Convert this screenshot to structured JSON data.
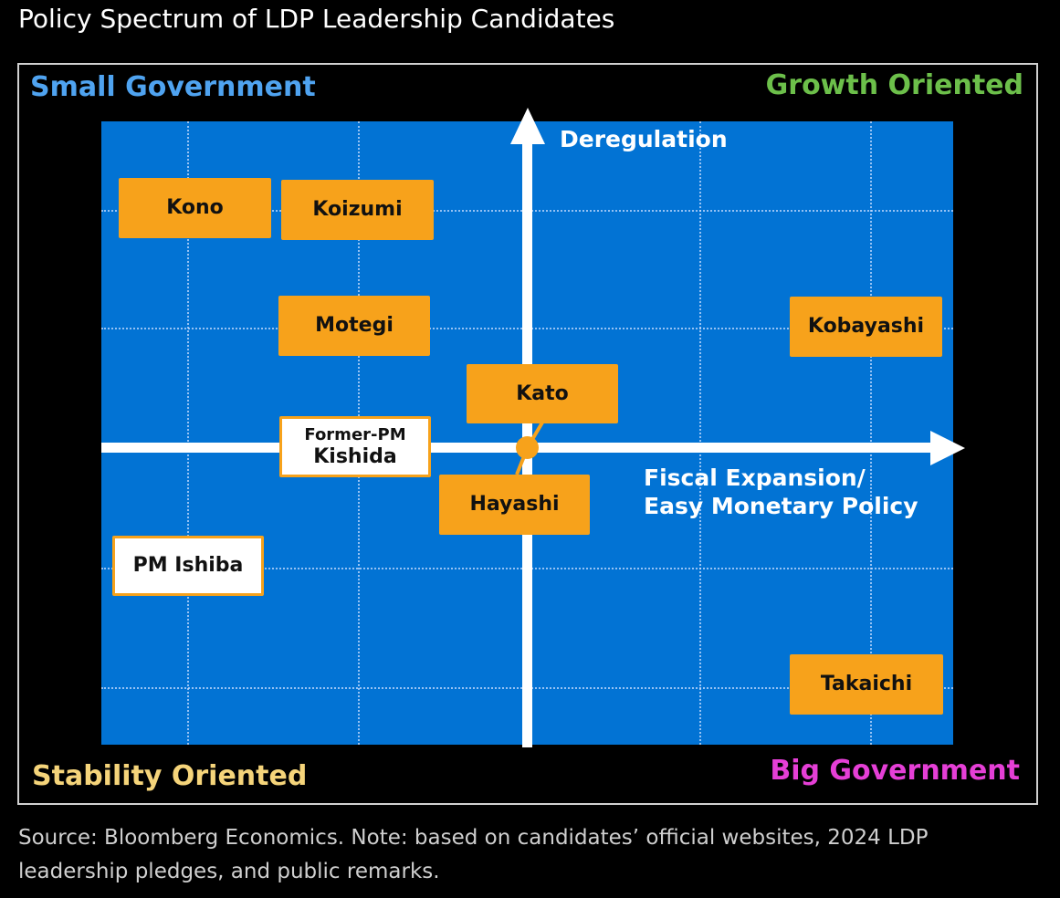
{
  "title": "Policy Spectrum of LDP Leadership Candidates",
  "quadrants": {
    "top_left": "Small Government",
    "top_right": "Growth Oriented",
    "bottom_left": "Stability Oriented",
    "bottom_right": "Big Government"
  },
  "axes": {
    "vertical_label": "Deregulation",
    "horizontal_label_line1": "Fiscal Expansion/",
    "horizontal_label_line2": "Easy Monetary Policy"
  },
  "candidates": {
    "kono": "Kono",
    "koizumi": "Koizumi",
    "motegi": "Motegi",
    "kobayashi": "Kobayashi",
    "kato": "Kato",
    "kishida_prefix": "Former-PM",
    "kishida": "Kishida",
    "hayashi": "Hayashi",
    "ishiba": "PM Ishiba",
    "takaichi": "Takaichi"
  },
  "colors": {
    "background": "#000000",
    "plot_area": "#0273d4",
    "candidate_box": "#f7a21b",
    "small_government": "#4fa3f0",
    "growth_oriented": "#6cbf4a",
    "stability_oriented": "#f5d47a",
    "big_government": "#e53fd6"
  },
  "source": "Source: Bloomberg Economics. Note: based on candidates’ official websites, 2024 LDP leadership pledges, and public remarks."
}
